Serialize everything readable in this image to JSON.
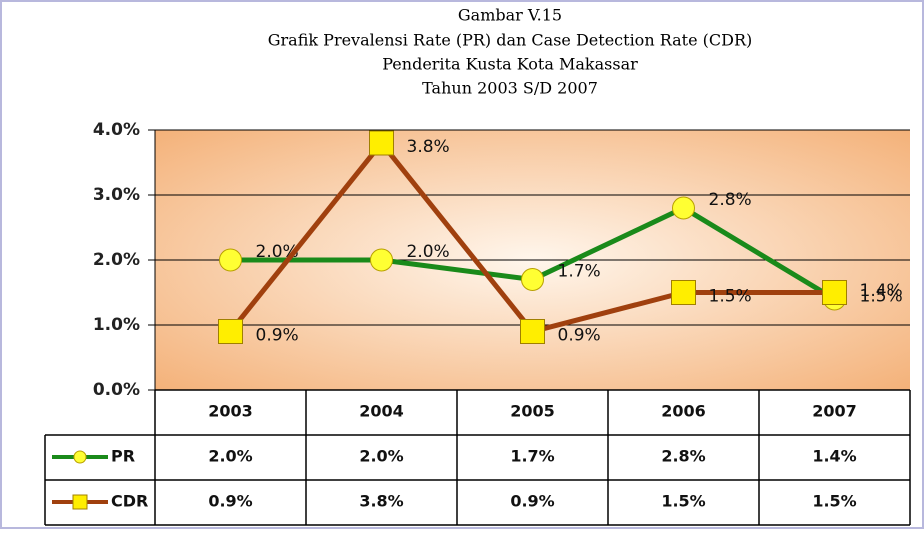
{
  "chart_data": {
    "type": "line",
    "title": "Gambar V.15",
    "subtitle": [
      "Grafik Prevalensi Rate (PR) dan Case Detection Rate (CDR)",
      "Penderita Kusta Kota Makassar",
      "Tahun 2003 S/D 2007"
    ],
    "categories": [
      "2003",
      "2004",
      "2005",
      "2006",
      "2007"
    ],
    "series": [
      {
        "name": "PR",
        "color": "#1a8a1a",
        "marker": "circle",
        "values": [
          2.0,
          2.0,
          1.7,
          2.8,
          1.4
        ],
        "value_labels": [
          "2.0%",
          "2.0%",
          "1.7%",
          "2.8%",
          "1.4%"
        ]
      },
      {
        "name": "CDR",
        "color": "#a0400e",
        "marker": "square",
        "values": [
          0.9,
          3.8,
          0.9,
          1.5,
          1.5
        ],
        "value_labels": [
          "0.9%",
          "3.8%",
          "0.9%",
          "1.5%",
          "1.5%"
        ]
      }
    ],
    "ylim": [
      0,
      4
    ],
    "yticks": [
      {
        "value": 0,
        "label": "0.0%"
      },
      {
        "value": 1,
        "label": "1.0%"
      },
      {
        "value": 2,
        "label": "2.0%"
      },
      {
        "value": 3,
        "label": "3.0%"
      },
      {
        "value": 4,
        "label": "4.0%"
      }
    ],
    "grid": true
  }
}
